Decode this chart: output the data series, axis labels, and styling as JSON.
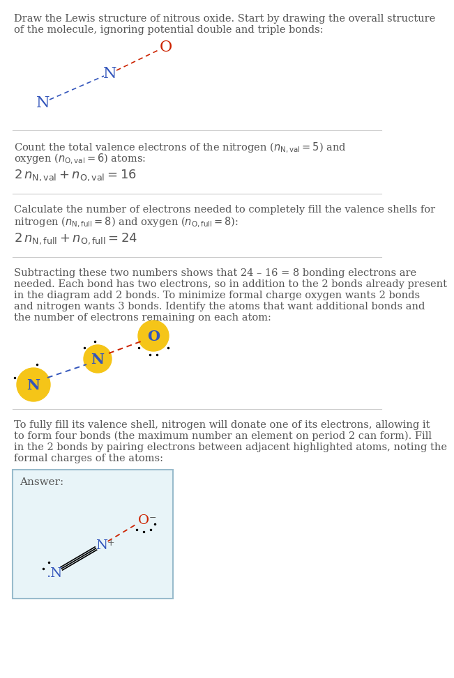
{
  "bg_color": "#ffffff",
  "sep_color": "#cccccc",
  "text_color": "#555555",
  "blue_color": "#3355bb",
  "red_color": "#cc2200",
  "yellow_color": "#f5c518",
  "answer_bg": "#e8f4f8",
  "answer_border": "#99bbcc",
  "section1_text": [
    "Draw the Lewis structure of nitrous oxide. Start by drawing the overall structure",
    "of the molecule, ignoring potential double and triple bonds:"
  ],
  "section2_text_line1": "Count the total valence electrons of the nitrogen (",
  "section2_text_line2": "oxygen (",
  "section3_text_line1": "Calculate the number of electrons needed to completely fill the valence shells for",
  "section3_text_line2": "nitrogen (",
  "section4_text": [
    "Subtracting these two numbers shows that 24 – 16 = 8 bonding electrons are",
    "needed. Each bond has two electrons, so in addition to the 2 bonds already present",
    "in the diagram add 2 bonds. To minimize formal charge oxygen wants 2 bonds",
    "and nitrogen wants 3 bonds. Identify the atoms that want additional bonds and",
    "the number of electrons remaining on each atom:"
  ],
  "section5_text": [
    "To fully fill its valence shell, nitrogen will donate one of its electrons, allowing it",
    "to form four bonds (the maximum number an element on period 2 can form). Fill",
    "in the 2 bonds by pairing electrons between adjacent highlighted atoms, noting the",
    "formal charges of the atoms:"
  ],
  "answer_label": "Answer:"
}
